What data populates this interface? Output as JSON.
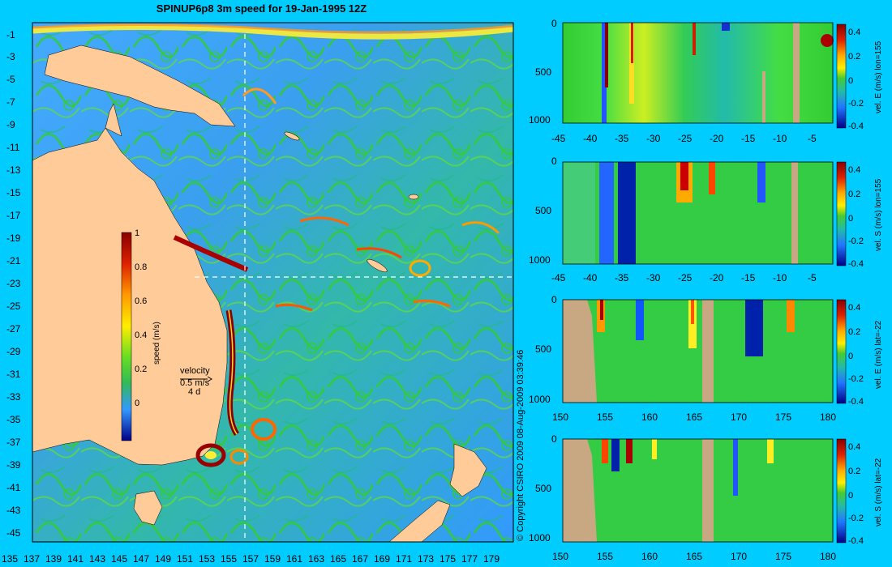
{
  "map": {
    "title": "SPINUP6p8 3m speed for 19-Jan-1995 12Z",
    "lat_ticks": [
      "-1",
      "-3",
      "-5",
      "-7",
      "-9",
      "-11",
      "-13",
      "-15",
      "-17",
      "-19",
      "-21",
      "-23",
      "-25",
      "-27",
      "-29",
      "-31",
      "-33",
      "-35",
      "-37",
      "-39",
      "-41",
      "-43",
      "-45"
    ],
    "lon_ticks": [
      "135",
      "137",
      "139",
      "141",
      "143",
      "145",
      "147",
      "149",
      "151",
      "153",
      "155",
      "157",
      "159",
      "161",
      "163",
      "165",
      "167",
      "169",
      "171",
      "173",
      "175",
      "177",
      "179"
    ],
    "colorbar": {
      "label": "speed (m/s)",
      "ticks": [
        "1",
        "0.8",
        "0.6",
        "0.4",
        "0.2",
        "0"
      ]
    },
    "velocity_key": {
      "title": "velocity",
      "speed": "0.5 m/s",
      "days": "4 d"
    },
    "section_lon": 155,
    "section_lat": -22,
    "colors": {
      "land": "#ffcc99",
      "ocean_low": "#3399ff",
      "ocean_mid": "#33cc33",
      "ocean_high": "#cc0000",
      "background": "#00ccff"
    }
  },
  "copyright": "© Copyright CSIRO 2009   08-Aug-2009 03:39:46",
  "panels": [
    {
      "label": "vel. E (m/s) lon=155",
      "x_ticks": [
        "-45",
        "-40",
        "-35",
        "-30",
        "-25",
        "-20",
        "-15",
        "-10",
        "-5"
      ],
      "y_ticks": [
        "0",
        "500",
        "1000"
      ],
      "cb_ticks": [
        "0.4",
        "0.2",
        "0",
        "-0.2",
        "-0.4"
      ]
    },
    {
      "label": "vel. S (m/s) lon=155",
      "x_ticks": [
        "-45",
        "-40",
        "-35",
        "-30",
        "-25",
        "-20",
        "-15",
        "-10",
        "-5"
      ],
      "y_ticks": [
        "0",
        "500",
        "1000"
      ],
      "cb_ticks": [
        "0.4",
        "0.2",
        "0",
        "-0.2",
        "-0.4"
      ]
    },
    {
      "label": "vel. E (m/s) lat=-22",
      "x_ticks": [
        "150",
        "155",
        "160",
        "165",
        "170",
        "175",
        "180"
      ],
      "y_ticks": [
        "0",
        "500",
        "1000"
      ],
      "cb_ticks": [
        "0.4",
        "0.2",
        "0",
        "-0.2",
        "-0.4"
      ]
    },
    {
      "label": "vel. S (m/s) lat=-22",
      "x_ticks": [
        "150",
        "155",
        "160",
        "165",
        "170",
        "175",
        "180"
      ],
      "y_ticks": [
        "0",
        "500",
        "1000"
      ],
      "cb_ticks": [
        "0.4",
        "0.2",
        "0",
        "-0.2",
        "-0.4"
      ]
    }
  ]
}
